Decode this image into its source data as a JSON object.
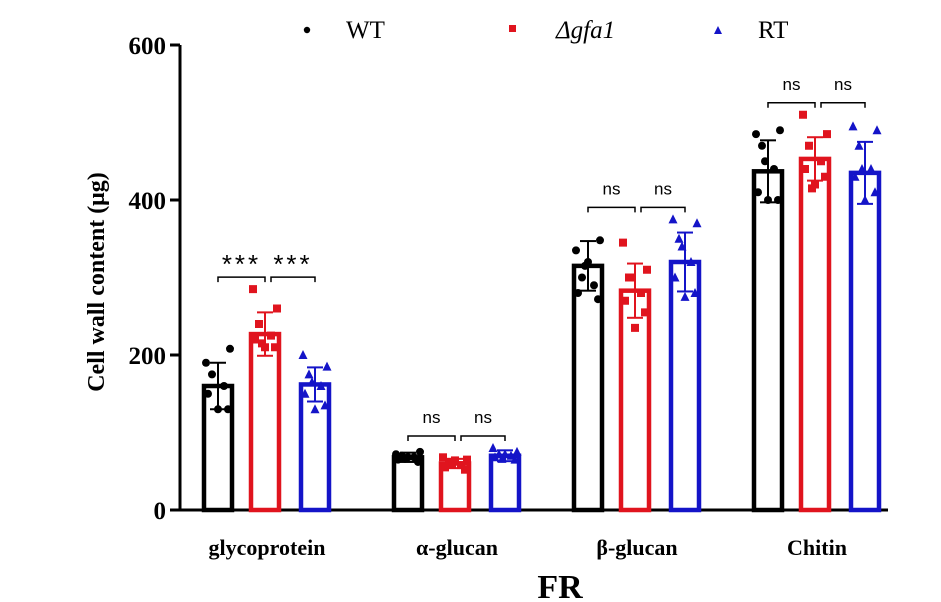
{
  "chart_data": {
    "type": "bar",
    "title": "",
    "xlabel": "FR",
    "ylabel": "Cell wall content (μg)",
    "ylim": [
      0,
      600
    ],
    "yticks": [
      0,
      200,
      400,
      600
    ],
    "grid": false,
    "legend_position": "top",
    "categories": [
      "glycoprotein",
      "α-glucan",
      "β-glucan",
      "Chitin"
    ],
    "series": [
      {
        "name": "WT",
        "marker": "circle",
        "color": "#000000",
        "values": [
          160,
          68,
          315,
          437
        ],
        "sd": [
          30,
          6,
          32,
          40
        ],
        "points": [
          [
            190,
            208,
            175,
            160,
            150,
            130,
            130
          ],
          [
            72,
            75,
            70,
            68,
            65,
            62,
            68,
            66
          ],
          [
            335,
            348,
            300,
            290,
            280,
            272,
            320,
            315
          ],
          [
            485,
            490,
            470,
            440,
            410,
            400,
            400,
            450
          ]
        ]
      },
      {
        "name": "Δgfa1",
        "marker": "square",
        "color": "#e0141e",
        "values": [
          227,
          60,
          283,
          453
        ],
        "sd": [
          28,
          6,
          35,
          28
        ],
        "points": [
          [
            285,
            260,
            240,
            225,
            220,
            210,
            210,
            215
          ],
          [
            68,
            65,
            62,
            58,
            55,
            52,
            64,
            60
          ],
          [
            345,
            310,
            300,
            280,
            270,
            255,
            235,
            300
          ],
          [
            510,
            485,
            470,
            450,
            440,
            430,
            420,
            415
          ]
        ]
      },
      {
        "name": "RT",
        "marker": "triangle",
        "color": "#1414c8",
        "values": [
          162,
          70,
          320,
          435
        ],
        "sd": [
          22,
          7,
          38,
          40
        ],
        "points": [
          [
            200,
            185,
            175,
            160,
            150,
            135,
            130,
            165
          ],
          [
            80,
            75,
            72,
            70,
            68,
            65,
            72,
            66
          ],
          [
            375,
            370,
            350,
            320,
            300,
            280,
            275,
            340
          ],
          [
            495,
            490,
            470,
            440,
            430,
            410,
            400,
            440
          ]
        ]
      }
    ],
    "significance": [
      {
        "category": 0,
        "pair": "WT-Δgfa1",
        "label": "***"
      },
      {
        "category": 0,
        "pair": "Δgfa1-RT",
        "label": "***"
      },
      {
        "category": 1,
        "pair": "WT-Δgfa1",
        "label": "ns"
      },
      {
        "category": 1,
        "pair": "Δgfa1-RT",
        "label": "ns"
      },
      {
        "category": 2,
        "pair": "WT-Δgfa1",
        "label": "ns"
      },
      {
        "category": 2,
        "pair": "Δgfa1-RT",
        "label": "ns"
      },
      {
        "category": 3,
        "pair": "WT-Δgfa1",
        "label": "ns"
      },
      {
        "category": 3,
        "pair": "Δgfa1-RT",
        "label": "ns"
      }
    ]
  }
}
